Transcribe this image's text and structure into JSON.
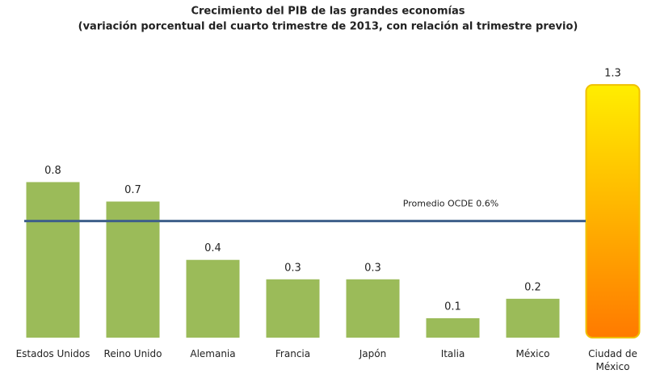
{
  "chart_data": {
    "type": "bar",
    "title": "Crecimiento del PIB de las grandes economías",
    "subtitle": "(variación porcentual del cuarto trimestre de 2013, con relación al trimestre previo)",
    "categories": [
      "Estados Unidos",
      "Reino Unido",
      "Alemania",
      "Francia",
      "Japón",
      "Italia",
      "México",
      "Ciudad de México"
    ],
    "values": [
      0.8,
      0.7,
      0.4,
      0.3,
      0.3,
      0.1,
      0.2,
      1.3
    ],
    "colors": [
      "#9bbb59",
      "#9bbb59",
      "#9bbb59",
      "#9bbb59",
      "#9bbb59",
      "#9bbb59",
      "#9bbb59",
      [
        "#ffee00",
        "#ff7a00"
      ]
    ],
    "ylim": [
      0,
      1.4
    ],
    "reference_line": {
      "value": 0.6,
      "label": "Promedio OCDE 0.6%",
      "color": "#3e5f8a"
    }
  }
}
